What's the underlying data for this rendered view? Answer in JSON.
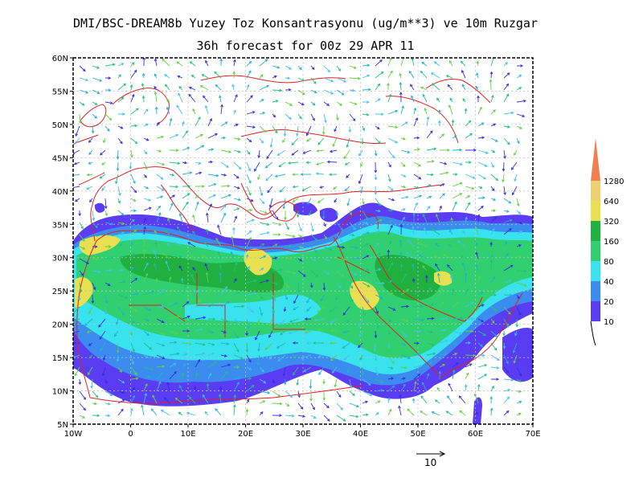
{
  "header": {
    "title": "DMI/BSC-DREAM8b Yuzey Toz Konsantrasyonu (ug/m**3) ve 10m Ruzgar",
    "subtitle": "36h forecast for 00z 29 APR 11"
  },
  "axes": {
    "lon_ticks": [
      "10W",
      "0",
      "10E",
      "20E",
      "30E",
      "40E",
      "50E",
      "60E",
      "70E"
    ],
    "lat_ticks": [
      "60N",
      "55N",
      "50N",
      "45N",
      "40N",
      "35N",
      "30N",
      "25N",
      "20N",
      "15N",
      "10N",
      "5N"
    ]
  },
  "colorbar": {
    "levels": [
      "10",
      "20",
      "40",
      "80",
      "160",
      "320",
      "640",
      "1280"
    ],
    "colors": [
      "#5a3cf2",
      "#3c8cf0",
      "#38e2ee",
      "#30d070",
      "#20b040",
      "#e8e050",
      "#f0d070",
      "#f08050"
    ]
  },
  "vector_reference": {
    "label": "10"
  },
  "colors": {
    "coast": "#e02020",
    "background": "#ffffff",
    "frame": "#000000"
  }
}
